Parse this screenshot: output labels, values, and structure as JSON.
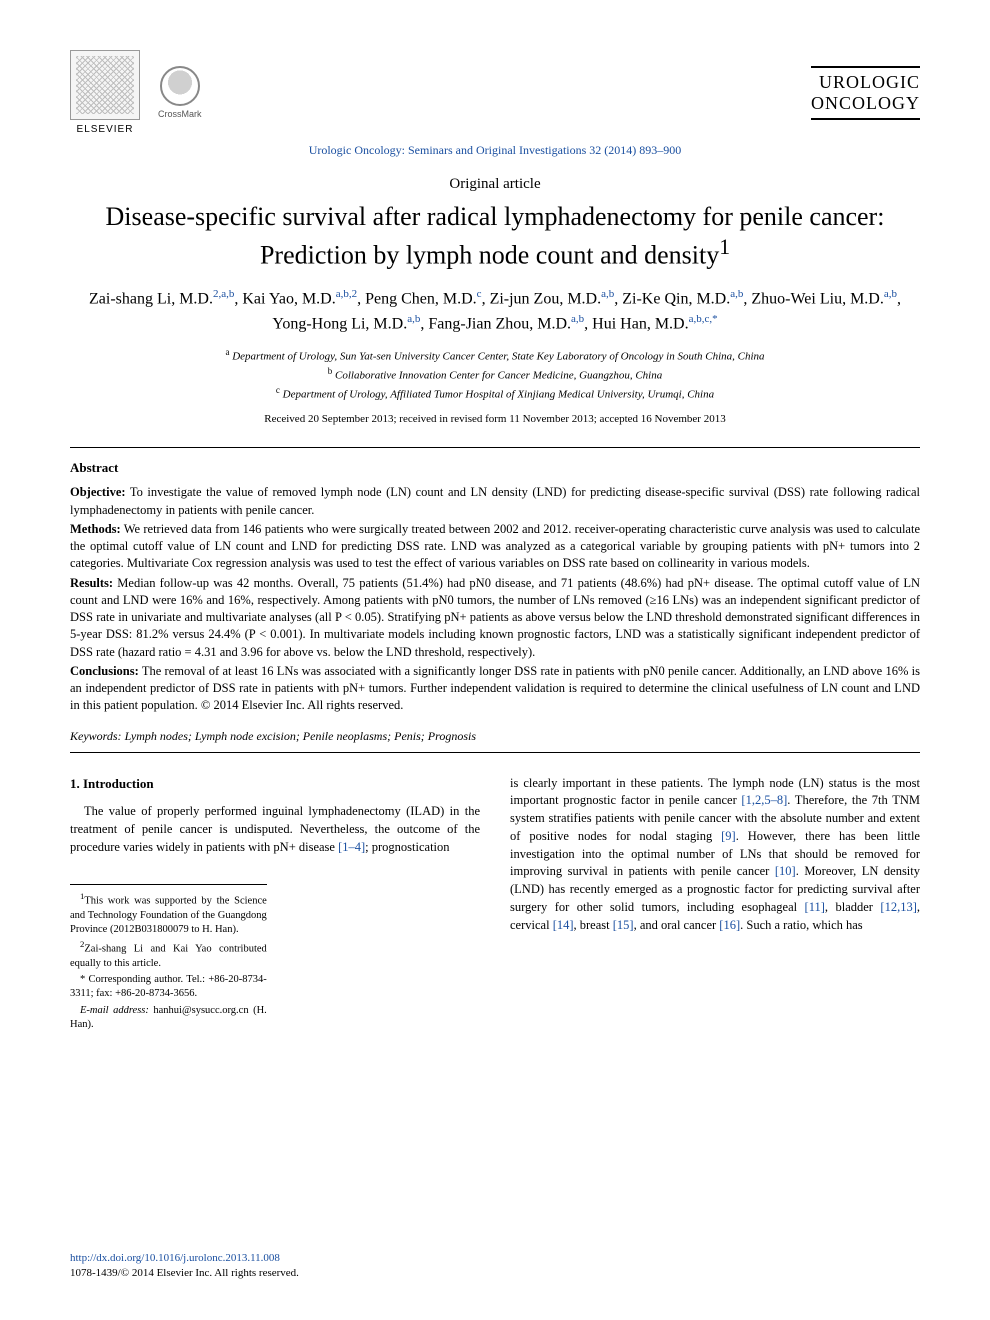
{
  "header": {
    "publisher": "ELSEVIER",
    "crossmark": "CrossMark",
    "journal_logo_line1": "UROLOGIC",
    "journal_logo_line2": "ONCOLOGY",
    "journal_ref": "Urologic Oncology: Seminars and Original Investigations 32 (2014) 893–900"
  },
  "article": {
    "type": "Original article",
    "title_line1": "Disease-specific survival after radical lymphadenectomy for penile cancer:",
    "title_line2": "Prediction by lymph node count and density",
    "title_footnote_marker": "1",
    "authors_html": "Zai-shang Li, M.D.<sup>2,a,b</sup>, Kai Yao, M.D.<sup>a,b,2</sup>, Peng Chen, M.D.<sup>c</sup>, Zi-jun Zou, M.D.<sup>a,b</sup>, Zi-Ke Qin, M.D.<sup>a,b</sup>, Zhuo-Wei Liu, M.D.<sup>a,b</sup>, Yong-Hong Li, M.D.<sup>a,b</sup>, Fang-Jian Zhou, M.D.<sup>a,b</sup>, Hui Han, M.D.<sup>a,b,c,*</sup>",
    "affiliations": {
      "a": "Department of Urology, Sun Yat-sen University Cancer Center, State Key Laboratory of Oncology in South China, China",
      "b": "Collaborative Innovation Center for Cancer Medicine, Guangzhou, China",
      "c": "Department of Urology, Affiliated Tumor Hospital of Xinjiang Medical University, Urumqi, China"
    },
    "dates": "Received 20 September 2013; received in revised form 11 November 2013; accepted 16 November 2013"
  },
  "abstract": {
    "heading": "Abstract",
    "objective_label": "Objective:",
    "objective": "To investigate the value of removed lymph node (LN) count and LN density (LND) for predicting disease-specific survival (DSS) rate following radical lymphadenectomy in patients with penile cancer.",
    "methods_label": "Methods:",
    "methods": "We retrieved data from 146 patients who were surgically treated between 2002 and 2012. receiver-operating characteristic curve analysis was used to calculate the optimal cutoff value of LN count and LND for predicting DSS rate. LND was analyzed as a categorical variable by grouping patients with pN+ tumors into 2 categories. Multivariate Cox regression analysis was used to test the effect of various variables on DSS rate based on collinearity in various models.",
    "results_label": "Results:",
    "results": "Median follow-up was 42 months. Overall, 75 patients (51.4%) had pN0 disease, and 71 patients (48.6%) had pN+ disease. The optimal cutoff value of LN count and LND were 16% and 16%, respectively. Among patients with pN0 tumors, the number of LNs removed (≥16 LNs) was an independent significant predictor of DSS rate in univariate and multivariate analyses (all P < 0.05). Stratifying pN+ patients as above versus below the LND threshold demonstrated significant differences in 5-year DSS: 81.2% versus 24.4% (P < 0.001). In multivariate models including known prognostic factors, LND was a statistically significant independent predictor of DSS rate (hazard ratio = 4.31 and 3.96 for above vs. below the LND threshold, respectively).",
    "conclusions_label": "Conclusions:",
    "conclusions": "The removal of at least 16 LNs was associated with a significantly longer DSS rate in patients with pN0 penile cancer. Additionally, an LND above 16% is an independent predictor of DSS rate in patients with pN+ tumors. Further independent validation is required to determine the clinical usefulness of LN count and LND in this patient population.   © 2014 Elsevier Inc. All rights reserved."
  },
  "keywords": {
    "label": "Keywords:",
    "text": "Lymph nodes; Lymph node excision; Penile neoplasms; Penis; Prognosis"
  },
  "body": {
    "section1_head": "1.  Introduction",
    "col_left": "The value of properly performed inguinal lymphadenectomy (ILAD) in the treatment of penile cancer is undisputed. Nevertheless, the outcome of the procedure varies widely in patients with pN+ disease ",
    "col_left_ref": "[1–4]",
    "col_left_tail": "; prognostication",
    "col_right_1": "is clearly important in these patients. The lymph node (LN) status is the most important prognostic factor in penile cancer ",
    "col_right_ref1": "[1,2,5–8]",
    "col_right_2": ". Therefore, the 7th TNM system stratifies patients with penile cancer with the absolute number and extent of positive nodes for nodal staging ",
    "col_right_ref2": "[9]",
    "col_right_3": ". However, there has been little investigation into the optimal number of LNs that should be removed for improving survival in patients with penile cancer ",
    "col_right_ref3": "[10]",
    "col_right_4": ". Moreover, LN density (LND) has recently emerged as a prognostic factor for predicting survival after surgery for other solid tumors, including esophageal ",
    "col_right_ref4": "[11]",
    "col_right_5": ", bladder ",
    "col_right_ref5": "[12,13]",
    "col_right_6": ", cervical ",
    "col_right_ref6": "[14]",
    "col_right_7": ", breast ",
    "col_right_ref7": "[15]",
    "col_right_8": ", and oral cancer ",
    "col_right_ref8": "[16]",
    "col_right_9": ". Such a ratio, which has"
  },
  "footnotes": {
    "fn1": "This work was supported by the Science and Technology Foundation of the Guangdong Province (2012B031800079 to H. Han).",
    "fn2": "Zai-shang Li and Kai Yao contributed equally to this article.",
    "corr_label": "* Corresponding author. Tel.: +86-20-8734-3311; fax: +86-20-8734-3656.",
    "email_label": "E-mail address:",
    "email": "hanhui@sysucc.org.cn (H. Han)."
  },
  "footer": {
    "doi": "http://dx.doi.org/10.1016/j.urolonc.2013.11.008",
    "issn": "1078-1439/© 2014 Elsevier Inc. All rights reserved."
  },
  "colors": {
    "link": "#1a4fa0",
    "text": "#000000",
    "background": "#ffffff"
  },
  "typography": {
    "title_fontsize": 26,
    "body_fontsize": 12.5,
    "abstract_fontsize": 12.5,
    "footnote_fontsize": 10.5,
    "font_family": "Times New Roman"
  }
}
